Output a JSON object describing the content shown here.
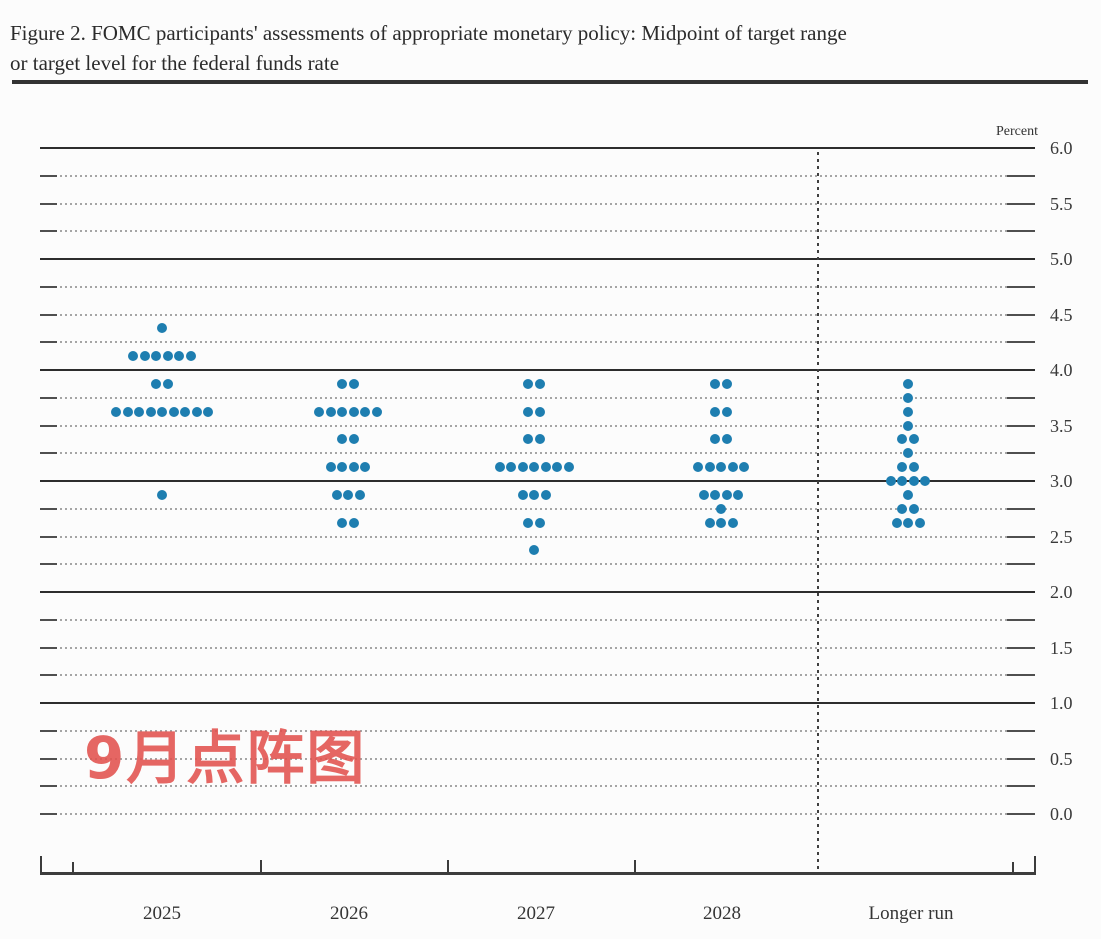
{
  "figure": {
    "title_line1": "Figure 2. FOMC participants' assessments of appropriate monetary policy: Midpoint of target range",
    "title_line2": "or target level for the federal funds rate"
  },
  "axis": {
    "percent_label": "Percent",
    "y_tick_labels": [
      "6.0",
      "5.5",
      "5.0",
      "4.5",
      "4.0",
      "3.5",
      "3.0",
      "2.5",
      "2.0",
      "1.5",
      "1.0",
      "0.5",
      "0.0"
    ],
    "x_labels": [
      "2025",
      "2026",
      "2027",
      "2028",
      "Longer run"
    ]
  },
  "watermark": {
    "text": "9月点阵图",
    "color": "#e2524e"
  },
  "colors": {
    "dot": "#1e7eb0",
    "solid_line": "#2d2d2d",
    "dotted_line": "#969696",
    "axis": "#3c3c3c",
    "text": "#2e2e2e",
    "watermark": "#e2524e"
  },
  "chart_data": {
    "type": "scatter",
    "subtype": "fomc-dot-plot",
    "title": "Figure 2. FOMC participants' assessments of appropriate monetary policy: Midpoint of target range or target level for the federal funds rate",
    "ylabel": "Percent",
    "ylim": [
      0.0,
      6.0
    ],
    "y_gridline_step": 0.25,
    "y_label_step": 0.5,
    "grid": true,
    "legend_position": "none",
    "categories": [
      "2025",
      "2026",
      "2027",
      "2028",
      "Longer run"
    ],
    "participants_per_column": 19,
    "dots": {
      "2025": {
        "4.375": 1,
        "4.125": 6,
        "3.875": 2,
        "3.625": 9,
        "2.875": 1
      },
      "2026": {
        "3.875": 2,
        "3.625": 6,
        "3.375": 2,
        "3.125": 4,
        "2.875": 3,
        "2.625": 2
      },
      "2027": {
        "3.875": 2,
        "3.625": 2,
        "3.375": 2,
        "3.125": 7,
        "2.875": 3,
        "2.625": 2,
        "2.375": 1
      },
      "2028": {
        "3.875": 2,
        "3.625": 2,
        "3.375": 2,
        "3.125": 5,
        "2.875": 4,
        "2.75": 1,
        "2.625": 3
      },
      "Longer run": {
        "3.875": 1,
        "3.75": 1,
        "3.625": 1,
        "3.5": 1,
        "3.375": 2,
        "3.25": 1,
        "3.125": 2,
        "3.0": 4,
        "2.875": 1,
        "2.75": 2,
        "2.625": 3
      }
    },
    "annotations": [
      "9月点阵图"
    ]
  }
}
